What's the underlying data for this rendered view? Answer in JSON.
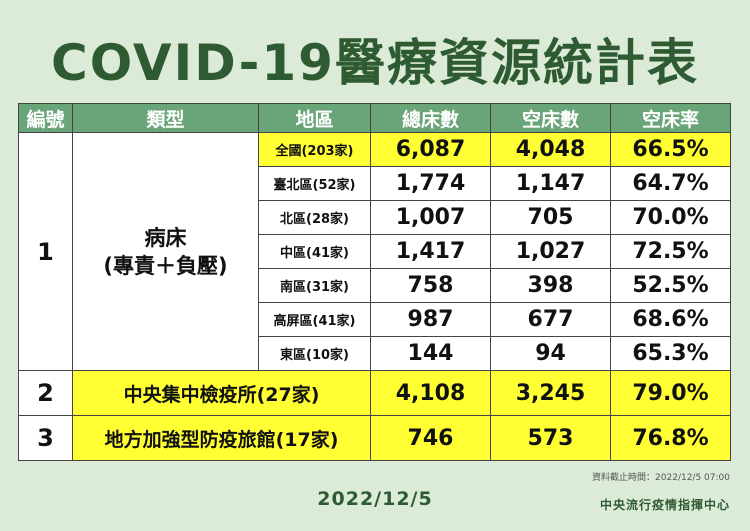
{
  "title": "COVID-19醫療資源統計表",
  "table": {
    "columns": [
      "編號",
      "類型",
      "地區",
      "總床數",
      "空床數",
      "空床率"
    ],
    "rows": [
      {
        "id": "1",
        "type": "病床",
        "type_sub": "(專責＋負壓)",
        "regions": [
          {
            "region": "全國(203家)",
            "total": "6,087",
            "empty": "4,048",
            "rate": "66.5%"
          },
          {
            "region": "臺北區(52家)",
            "total": "1,774",
            "empty": "1,147",
            "rate": "64.7%"
          },
          {
            "region": "北區(28家)",
            "total": "1,007",
            "empty": "705",
            "rate": "70.0%"
          },
          {
            "region": "中區(41家)",
            "total": "1,417",
            "empty": "1,027",
            "rate": "72.5%"
          },
          {
            "region": "南區(31家)",
            "total": "758",
            "empty": "398",
            "rate": "52.5%"
          },
          {
            "region": "高屏區(41家)",
            "total": "987",
            "empty": "677",
            "rate": "68.6%"
          },
          {
            "region": "東區(10家)",
            "total": "144",
            "empty": "94",
            "rate": "65.3%"
          }
        ]
      },
      {
        "id": "2",
        "type": "中央集中檢疫所(27家)",
        "total": "4,108",
        "empty": "3,245",
        "rate": "79.0%"
      },
      {
        "id": "3",
        "type": "地方加強型防疫旅館(17家)",
        "total": "746",
        "empty": "573",
        "rate": "76.8%"
      }
    ]
  },
  "footer": {
    "timestamp": "資料截止時間：2022/12/5 07:00",
    "date": "2022/12/5",
    "org": "中央流行疫情指揮中心"
  }
}
